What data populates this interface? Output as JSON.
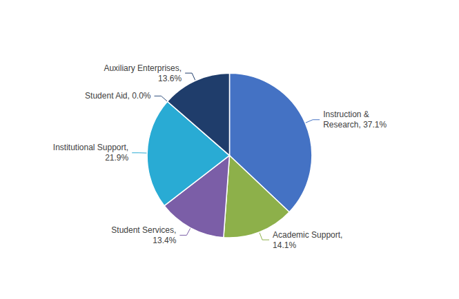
{
  "chart_data": {
    "type": "pie",
    "categories": [
      "Instruction &\nResearch, 37.1%",
      "Academic Support,\n14.1%",
      "Student Services,\n13.4%",
      "Institutional Support,\n21.9%",
      "Student Aid, 0.0%",
      "Auxiliary Enterprises,\n13.6%"
    ],
    "values": [
      37.1,
      14.1,
      13.4,
      21.9,
      0.001,
      13.6
    ],
    "colors": [
      "#4472C4",
      "#8DB04A",
      "#7B5EA7",
      "#29ABD4",
      "#2E4D7B",
      "#1F3D6B"
    ]
  }
}
